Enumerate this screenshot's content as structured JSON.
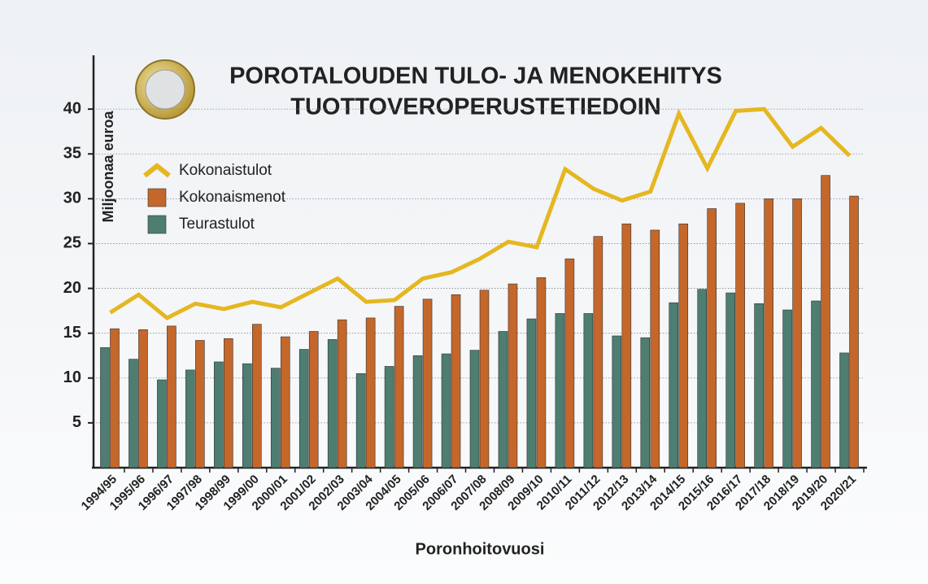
{
  "chart_data": {
    "type": "bar",
    "title": [
      "POROTALOUDEN TULO- JA MENOKEHITYS",
      "TUOTTOVEROPERUSTETIEDOIN"
    ],
    "y_label": "Miljoonaa euroa",
    "x_label": "Poronhoitovuosi",
    "categories": [
      "1994/95",
      "1995/96",
      "1996/97",
      "1997/98",
      "1998/99",
      "1999/00",
      "2000/01",
      "2001/02",
      "2002/03",
      "2003/04",
      "2004/05",
      "2005/06",
      "2006/07",
      "2007/08",
      "2008/09",
      "2009/10",
      "2010/11",
      "2011/12",
      "2012/13",
      "2013/14",
      "2014/15",
      "2015/16",
      "2016/17",
      "2017/18",
      "2018/19",
      "2019/20",
      "2020/21"
    ],
    "series": [
      {
        "name": "Kokonaistulot",
        "type": "line",
        "color": "#e5b720",
        "values": [
          17.3,
          19.3,
          16.7,
          18.3,
          17.7,
          18.5,
          17.9,
          19.5,
          21.1,
          18.5,
          18.7,
          21.1,
          21.8,
          23.3,
          25.2,
          24.6,
          33.3,
          31.1,
          29.8,
          30.8,
          39.5,
          33.4,
          39.8,
          40.0,
          35.8,
          37.9,
          34.8
        ]
      },
      {
        "name": "Kokonaismenot",
        "type": "bar",
        "color": "#c4672b",
        "values": [
          15.5,
          15.4,
          15.8,
          14.2,
          14.4,
          16.0,
          14.6,
          15.2,
          16.5,
          16.7,
          18.0,
          18.8,
          19.3,
          19.8,
          20.5,
          21.2,
          23.3,
          25.8,
          27.2,
          26.5,
          27.2,
          28.9,
          29.5,
          30.0,
          30.0,
          32.6,
          30.3
        ]
      },
      {
        "name": "Teurastulot",
        "type": "bar",
        "color": "#4e7d72",
        "values": [
          13.4,
          12.1,
          9.8,
          10.9,
          11.8,
          11.6,
          11.1,
          13.2,
          14.3,
          10.5,
          11.3,
          12.5,
          12.7,
          13.1,
          15.2,
          16.6,
          17.2,
          17.2,
          14.7,
          14.5,
          18.4,
          19.9,
          19.5,
          18.3,
          17.6,
          18.6,
          12.8
        ]
      }
    ],
    "ylim": [
      0,
      46
    ],
    "yticks": [
      5,
      10,
      15,
      20,
      25,
      30,
      35,
      40
    ],
    "grid": true
  }
}
